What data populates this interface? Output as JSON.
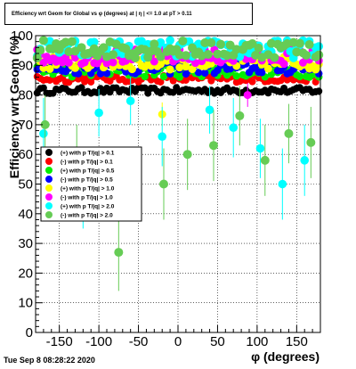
{
  "chart_data": {
    "type": "scatter",
    "title": "Efficiency wrt Geom for Global vs φ (degrees) at | η | <= 1.0 at pT > 0.11",
    "xlabel": "φ (degrees)",
    "ylabel": "Efficiency wrt Geom (%)",
    "xlim": [
      -180,
      180
    ],
    "ylim": [
      0,
      100
    ],
    "x_ticks": [
      "-150",
      "-100",
      "-50",
      "0",
      "50",
      "100",
      "150"
    ],
    "y_ticks": [
      "0",
      "10",
      "20",
      "30",
      "40",
      "50",
      "60",
      "70",
      "80",
      "90",
      "100"
    ],
    "grid": true,
    "legend_position": "left-middle",
    "series": [
      {
        "name": "(+) with p T/|q| > 0.1",
        "color": "#000000",
        "level": 81.5,
        "spread": 1.0,
        "x": [],
        "y": []
      },
      {
        "name": "(-) with p T/|q| > 0.1",
        "color": "#ff0000",
        "level": 85.5,
        "spread": 1.2,
        "x": [],
        "y": []
      },
      {
        "name": "(+) with p T/|q| > 0.5",
        "color": "#00ee00",
        "level": 88.0,
        "spread": 2.0,
        "x": [],
        "y": []
      },
      {
        "name": "(-) with p T/|q| > 0.5",
        "color": "#0000ff",
        "level": 89.0,
        "spread": 2.0,
        "x": [],
        "y": []
      },
      {
        "name": "(+) with p T/|q| > 1.0",
        "color": "#ffff00",
        "level": 91.0,
        "spread": 2.5,
        "x": [],
        "y": []
      },
      {
        "name": "(-) with p T/|q| > 1.0",
        "color": "#ff00ff",
        "level": 93.0,
        "spread": 2.5,
        "x": [],
        "y": []
      },
      {
        "name": "(+) with p T/|q| > 2.0",
        "color": "#00ffff",
        "level": 95.5,
        "spread": 3.0,
        "x": [],
        "y": []
      },
      {
        "name": "(-) with p T/|q| > 2.0",
        "color": "#66cc55",
        "level": 95.5,
        "spread": 3.0,
        "x": [],
        "y": []
      }
    ],
    "outliers": [
      {
        "series": 7,
        "x": -75,
        "y": 27,
        "err": 13
      },
      {
        "series": 7,
        "x": -168,
        "y": 70,
        "err": 10
      },
      {
        "series": 7,
        "x": -128,
        "y": 60,
        "err": 10
      },
      {
        "series": 7,
        "x": -18,
        "y": 50,
        "err": 12
      },
      {
        "series": 7,
        "x": 12,
        "y": 60,
        "err": 12
      },
      {
        "series": 7,
        "x": 45,
        "y": 63,
        "err": 12
      },
      {
        "series": 7,
        "x": 78,
        "y": 73,
        "err": 10
      },
      {
        "series": 7,
        "x": 110,
        "y": 58,
        "err": 12
      },
      {
        "series": 7,
        "x": 140,
        "y": 67,
        "err": 10
      },
      {
        "series": 7,
        "x": 168,
        "y": 64,
        "err": 12
      },
      {
        "series": 6,
        "x": -170,
        "y": 67,
        "err": 12
      },
      {
        "series": 6,
        "x": -120,
        "y": 47,
        "err": 12
      },
      {
        "series": 6,
        "x": -20,
        "y": 39,
        "err": 12
      },
      {
        "series": 6,
        "x": -20,
        "y": 66,
        "err": 10
      },
      {
        "series": 6,
        "x": 40,
        "y": 75,
        "err": 8
      },
      {
        "series": 6,
        "x": 70,
        "y": 69,
        "err": 10
      },
      {
        "series": 6,
        "x": 104,
        "y": 62,
        "err": 10
      },
      {
        "series": 6,
        "x": 132,
        "y": 50,
        "err": 12
      },
      {
        "series": 6,
        "x": 160,
        "y": 58,
        "err": 12
      },
      {
        "series": 6,
        "x": -100,
        "y": 74,
        "err": 8
      },
      {
        "series": 6,
        "x": -60,
        "y": 78,
        "err": 8
      },
      {
        "series": 4,
        "x": -20,
        "y": 73.5,
        "err": 4
      },
      {
        "series": 5,
        "x": 88,
        "y": 80,
        "err": 4
      }
    ]
  },
  "timestamp": "Tue Sep  8 08:28:22 2020"
}
